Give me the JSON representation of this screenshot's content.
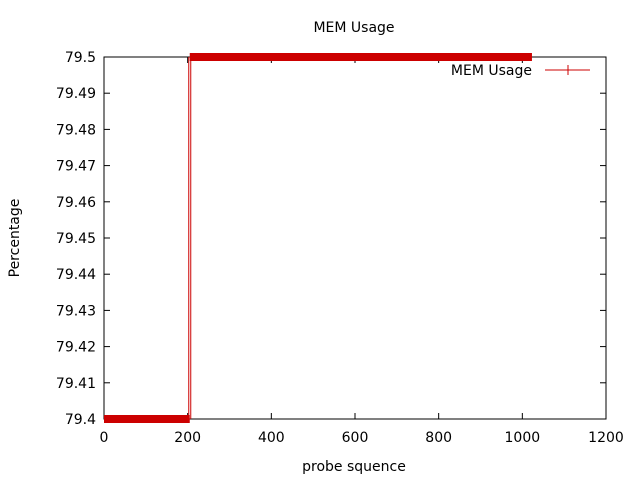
{
  "chart_data": {
    "type": "line",
    "title": "MEM Usage",
    "xlabel": "probe squence",
    "ylabel": "Percentage",
    "xlim": [
      0,
      1200
    ],
    "ylim": [
      79.4,
      79.5
    ],
    "x_ticks": [
      "0",
      "200",
      "400",
      "600",
      "800",
      "1000",
      "1200"
    ],
    "y_ticks": [
      "79.4",
      "79.41",
      "79.42",
      "79.43",
      "79.44",
      "79.45",
      "79.46",
      "79.47",
      "79.48",
      "79.49",
      "79.5"
    ],
    "grid": false,
    "legend_position": "top-right",
    "series": [
      {
        "name": "MEM Usage",
        "color": "#cc0000",
        "marker": "plus",
        "segments": [
          {
            "x_start": 0,
            "x_end": 205,
            "y": 79.4
          },
          {
            "x_start": 205,
            "x_end": 1023,
            "y": 79.5
          }
        ],
        "step_x": 205
      }
    ]
  }
}
